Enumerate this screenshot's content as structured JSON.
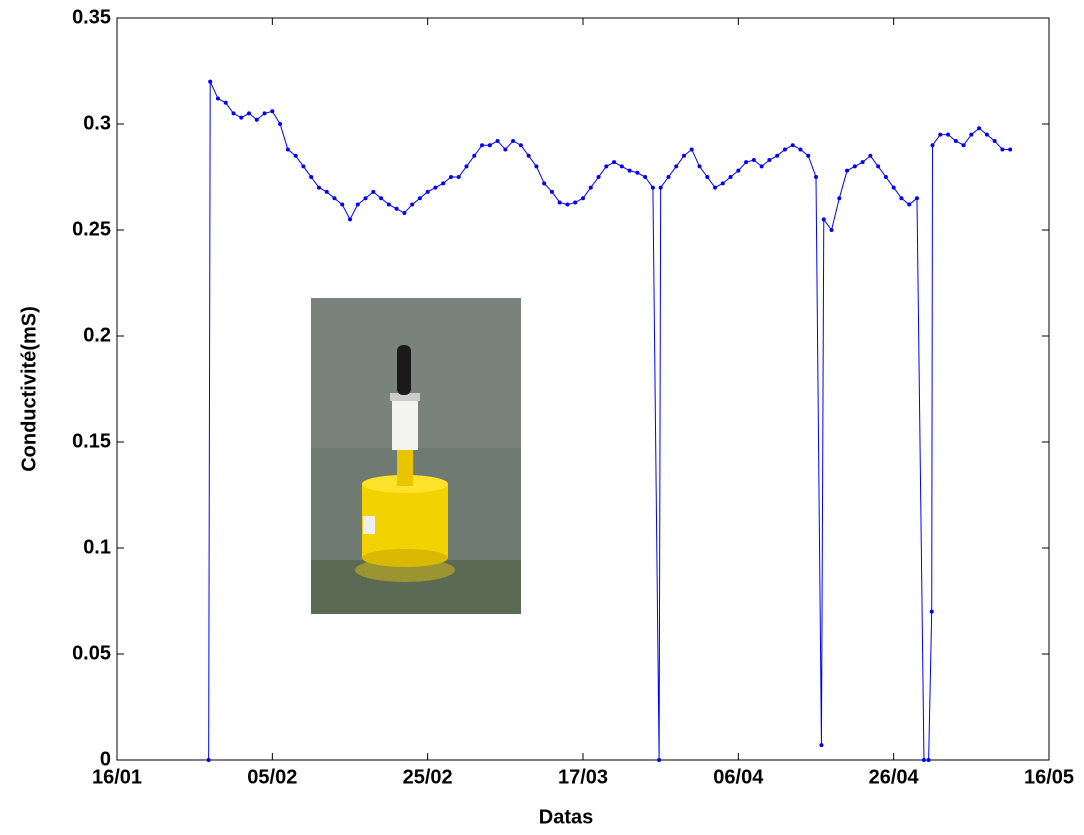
{
  "chart_data": {
    "type": "line",
    "x_label": "Datas",
    "y_label": "Conductivité(mS)",
    "x": [
      11.8,
      12,
      13,
      14,
      15,
      16,
      17,
      18,
      19,
      20,
      21,
      22,
      23,
      24,
      25,
      26,
      27,
      28,
      29,
      30,
      31,
      32,
      33,
      34,
      35,
      36,
      37,
      38,
      39,
      40,
      41,
      42,
      43,
      44,
      45,
      46,
      47,
      48,
      49,
      50,
      51,
      52,
      53,
      54,
      55,
      56,
      57,
      58,
      59,
      60,
      61,
      62,
      63,
      64,
      65,
      66,
      67,
      68,
      69,
      69.8,
      70,
      71,
      72,
      73,
      74,
      75,
      76,
      77,
      78,
      79,
      80,
      81,
      82,
      83,
      84,
      85,
      86,
      87,
      88,
      89,
      90,
      90.7,
      91,
      92,
      93,
      94,
      95,
      96,
      97,
      98,
      99,
      100,
      101,
      102,
      103,
      103.9,
      104.5,
      104.9,
      105,
      106,
      107,
      108,
      109,
      110,
      111,
      112,
      113,
      114,
      115
    ],
    "series": [
      {
        "color": "#0000ff",
        "values": [
          0.0,
          0.32,
          0.312,
          0.31,
          0.305,
          0.303,
          0.305,
          0.302,
          0.305,
          0.306,
          0.3,
          0.288,
          0.285,
          0.28,
          0.275,
          0.27,
          0.268,
          0.265,
          0.262,
          0.255,
          0.262,
          0.265,
          0.268,
          0.265,
          0.262,
          0.26,
          0.258,
          0.262,
          0.265,
          0.268,
          0.27,
          0.272,
          0.275,
          0.275,
          0.28,
          0.285,
          0.29,
          0.29,
          0.292,
          0.288,
          0.292,
          0.29,
          0.285,
          0.28,
          0.272,
          0.268,
          0.263,
          0.262,
          0.263,
          0.265,
          0.27,
          0.275,
          0.28,
          0.282,
          0.28,
          0.278,
          0.277,
          0.275,
          0.27,
          0.0,
          0.27,
          0.275,
          0.28,
          0.285,
          0.288,
          0.28,
          0.275,
          0.27,
          0.272,
          0.275,
          0.278,
          0.282,
          0.283,
          0.28,
          0.283,
          0.285,
          0.288,
          0.29,
          0.288,
          0.285,
          0.275,
          0.007,
          0.255,
          0.25,
          0.265,
          0.278,
          0.28,
          0.282,
          0.285,
          0.28,
          0.275,
          0.27,
          0.265,
          0.262,
          0.265,
          0.0,
          0.0,
          0.07,
          0.29,
          0.295,
          0.295,
          0.292,
          0.29,
          0.295,
          0.298,
          0.295,
          0.292,
          0.288,
          0.288
        ]
      }
    ],
    "xlim": [
      0,
      120
    ],
    "xticks": [
      {
        "value": 0,
        "label": "16/01"
      },
      {
        "value": 20,
        "label": "05/02"
      },
      {
        "value": 40,
        "label": "25/02"
      },
      {
        "value": 60,
        "label": "17/03"
      },
      {
        "value": 80,
        "label": "06/04"
      },
      {
        "value": 100,
        "label": "26/04"
      },
      {
        "value": 120,
        "label": "16/05"
      }
    ],
    "ylim": [
      0,
      0.35
    ],
    "yticks": [
      0,
      0.05,
      0.1,
      0.15,
      0.2,
      0.25,
      0.3,
      0.35
    ]
  }
}
